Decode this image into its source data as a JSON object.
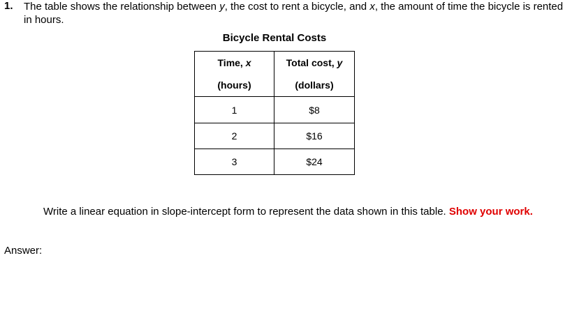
{
  "question": {
    "number": "1.",
    "text_parts": [
      "The table shows the relationship between ",
      "y",
      ", the cost to rent a bicycle, and ",
      "x",
      ", the amount of time the bicycle is rented in hours."
    ]
  },
  "table": {
    "title": "Bicycle Rental Costs",
    "headers": [
      {
        "line1": "Time, ",
        "var": "x",
        "line2": "(hours)"
      },
      {
        "line1": "Total cost, ",
        "var": "y",
        "line2": "(dollars)"
      }
    ],
    "rows": [
      [
        "1",
        "$8"
      ],
      [
        "2",
        "$16"
      ],
      [
        "3",
        "$24"
      ]
    ]
  },
  "prompt": {
    "text": "Write a linear equation in slope-intercept form to represent the data shown in this table. ",
    "emphasis": "Show your work.",
    "emphasis_color": "#e00000"
  },
  "answer_label": "Answer:"
}
